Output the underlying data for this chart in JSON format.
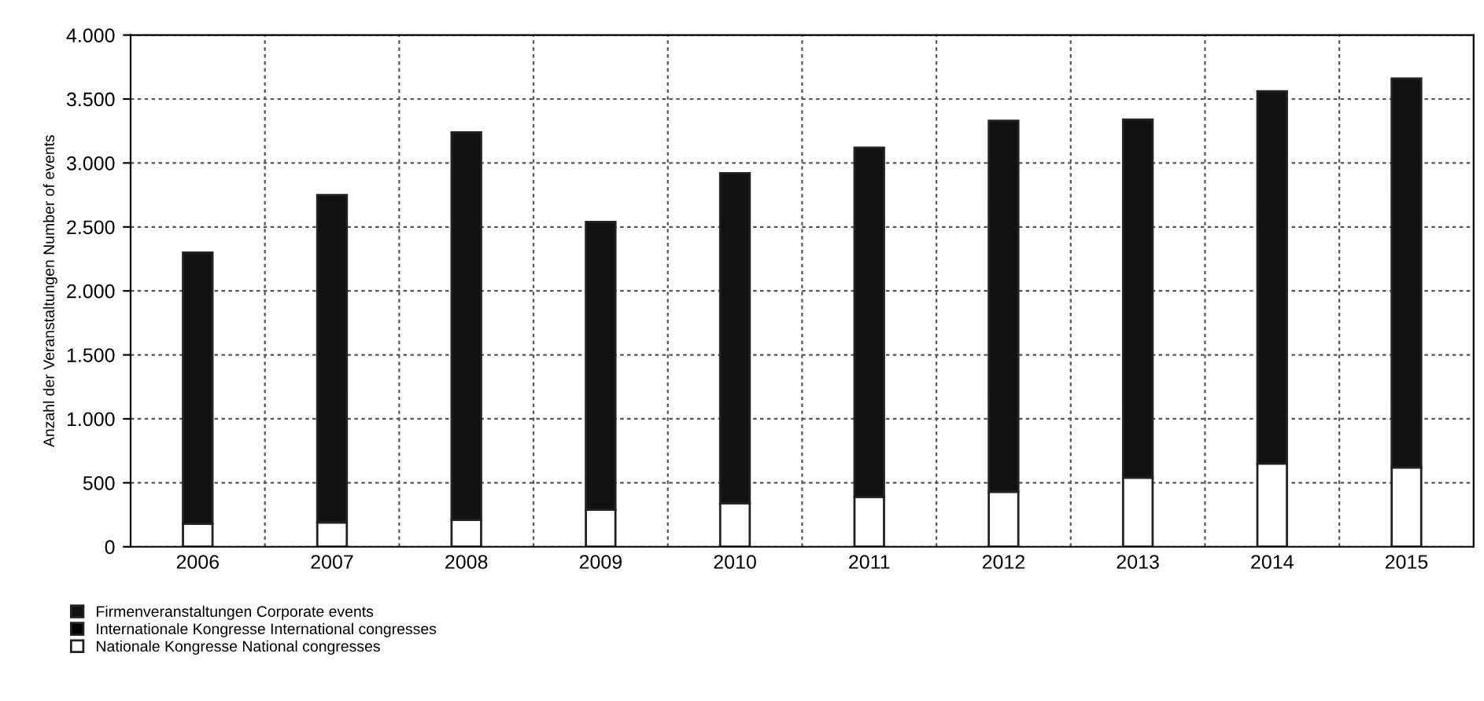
{
  "chart_data": {
    "type": "bar",
    "stacked": true,
    "ylabel": "Anzahl der Veranstaltungen Number of events",
    "categories": [
      "2006",
      "2007",
      "2008",
      "2009",
      "2010",
      "2011",
      "2012",
      "2013",
      "2014",
      "2015"
    ],
    "series": [
      {
        "name": "Nationale Kongresse National congresses",
        "color": "#ffffff",
        "values": [
          180,
          190,
          210,
          290,
          340,
          390,
          430,
          540,
          650,
          620
        ]
      },
      {
        "name": "Internationale Kongresse International congresses",
        "color": "#000000",
        "values": [
          null,
          null,
          null,
          null,
          null,
          null,
          null,
          null,
          null,
          null
        ]
      },
      {
        "name": "Firmenveranstaltungen Corporate events",
        "color": "#111111",
        "values": [
          2120,
          2560,
          3030,
          2250,
          2580,
          2730,
          2900,
          2800,
          2910,
          3040
        ]
      }
    ],
    "ylim": [
      0,
      4000
    ],
    "yticks": [
      0,
      500,
      {
        "value": 1000,
        "label": "1.000"
      },
      {
        "value": 1500,
        "label": "1.500"
      },
      {
        "value": 2000,
        "label": "2.000"
      },
      {
        "value": 2500,
        "label": "2.500"
      },
      {
        "value": 3000,
        "label": "3.000"
      },
      {
        "value": 3500,
        "label": "3.500"
      },
      {
        "value": 4000,
        "label": "4.000"
      }
    ],
    "grid": true,
    "legend": "bottom left"
  }
}
